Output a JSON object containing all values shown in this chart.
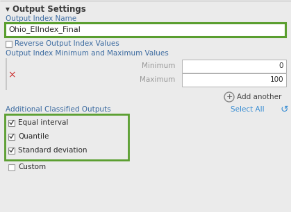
{
  "bg_color": "#ebebeb",
  "title_text": "▾ Output Settings",
  "title_color": "#3b3b3b",
  "title_fontsize": 8.5,
  "label_color": "#555555",
  "label_fontsize": 7.5,
  "blue_label_color": "#3b6aa0",
  "output_index_label": "Output Index Name",
  "output_index_value": "Ohio_EIIndex_Final",
  "text_box_border_color": "#5a9e2f",
  "text_box_bg": "#ffffff",
  "text_color": "#2a2a2a",
  "checkbox_unchecked_label": "Reverse Output Index Values",
  "min_max_label": "Output Index Minimum and Maximum Values",
  "min_label": "Minimum",
  "max_label": "Maximum",
  "min_value": "0",
  "max_value": "100",
  "input_border_color": "#b0b0b0",
  "x_mark_color": "#cc3333",
  "add_another_text": "Add another",
  "add_another_color": "#4a4a4a",
  "additional_label": "Additional Classified Outputs",
  "select_all_text": "Select All",
  "select_all_color": "#3b8fd4",
  "checked_items": [
    "Equal interval",
    "Quantile",
    "Standard deviation"
  ],
  "unchecked_items": [
    "Custom"
  ],
  "green_box_color": "#5a9e2f",
  "vbar_color": "#c8c8c8",
  "font_family": "DejaVu Sans"
}
